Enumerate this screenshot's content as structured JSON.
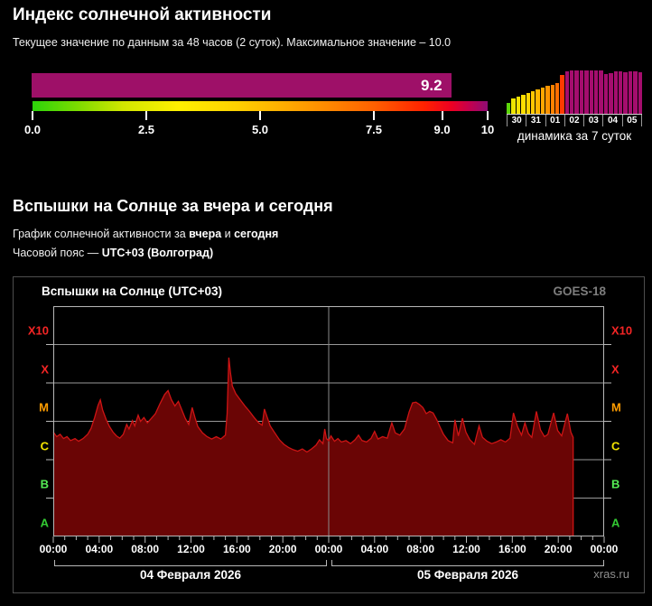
{
  "index_section": {
    "title": "Индекс солнечной активности",
    "subtitle": "Текущее значение по данным за 48 часов (2 суток). Максимальное значение – 10.0"
  },
  "flares_section": {
    "title": "Вспышки на Солнце за вчера и сегодня",
    "desc_prefix": "График солнечной активности за ",
    "desc_bold1": "вчера",
    "desc_mid": " и ",
    "desc_bold2": "сегодня",
    "tz_prefix": "Часовой пояс — ",
    "tz_bold": "UTC+03 (Волгоград)"
  },
  "chart_data": [
    {
      "name": "solar-activity-index-gauge",
      "type": "gauge",
      "value": 9.2,
      "value_label": "9.2",
      "min": 0,
      "max": 10,
      "bar_color": "#9e1068",
      "ticks": [
        {
          "label": "0.0",
          "pos": 0
        },
        {
          "label": "2.5",
          "pos": 25
        },
        {
          "label": "5.0",
          "pos": 50
        },
        {
          "label": "7.5",
          "pos": 75
        },
        {
          "label": "9.0",
          "pos": 90
        },
        {
          "label": "10",
          "pos": 100
        }
      ],
      "gradient_stops": [
        "#2cd40a 0%",
        "#7ddc00 10%",
        "#d2e600 20%",
        "#fff000 32%",
        "#ffd000 45%",
        "#ffaa00 56%",
        "#ff8800 65%",
        "#ff6000 75%",
        "#ff2200 86%",
        "#ee0022 92%",
        "#c4004e 96%",
        "#8e0c74 100%"
      ]
    },
    {
      "name": "activity-7day-dynamics",
      "type": "bar",
      "caption": "динамика за 7 суток",
      "day_labels": [
        "30",
        "31",
        "01",
        "02",
        "03",
        "04",
        "05"
      ],
      "values_pct": [
        26,
        36,
        40,
        44,
        48,
        52,
        56,
        60,
        64,
        67,
        71,
        90,
        97,
        99,
        99,
        100,
        99,
        100,
        99,
        99,
        92,
        94,
        97,
        98,
        96,
        97,
        98,
        96
      ],
      "colors": [
        "#5cd60a",
        "#ede400",
        "#f6e200",
        "#fede00",
        "#ffd600",
        "#ffc800",
        "#ffb800",
        "#ffa600",
        "#ff9400",
        "#ff8200",
        "#ff6e00",
        "#fe3b00",
        "#a50d6e",
        "#a50d6e",
        "#a50d6e",
        "#a50d6e",
        "#a50d6e",
        "#a50d6e",
        "#a50d6e",
        "#a50d6e",
        "#a50d6e",
        "#a50d6e",
        "#a50d6e",
        "#a50d6e",
        "#a50d6e",
        "#a50d6e",
        "#a50d6e",
        "#a50d6e"
      ]
    },
    {
      "name": "solar-flares-goes",
      "type": "area",
      "title": "Вспышки на Солнце (UTC+03)",
      "source_label": "GOES-18",
      "watermark": "xras.ru",
      "x_range_hours": [
        0,
        48
      ],
      "data_end_hour": 45.3,
      "x_tick_labels": [
        "00:00",
        "04:00",
        "08:00",
        "12:00",
        "16:00",
        "20:00",
        "00:00",
        "04:00",
        "08:00",
        "12:00",
        "16:00",
        "20:00",
        "00:00"
      ],
      "day_labels": [
        "04 Февраля 2026",
        "05 Февраля 2026"
      ],
      "y_class_labels": [
        {
          "label": "X10",
          "color": "#f42525"
        },
        {
          "label": "X",
          "color": "#f42525"
        },
        {
          "label": "M",
          "color": "#ff9d00"
        },
        {
          "label": "C",
          "color": "#f5e400"
        },
        {
          "label": "B",
          "color": "#55ee55"
        },
        {
          "label": "A",
          "color": "#33cc33"
        }
      ],
      "y_scale_note": "flux in class units: A=0-1, B=1-2, C=2-3, M=3-4, X=4-5, X10=5-6",
      "area_fill": "#6a0505",
      "line_color": "#cd1414",
      "grid_color": "#989898",
      "frame_color": "#b8b8b8",
      "points": [
        [
          0,
          2.72
        ],
        [
          0.3,
          2.6
        ],
        [
          0.6,
          2.66
        ],
        [
          0.9,
          2.55
        ],
        [
          1.2,
          2.6
        ],
        [
          1.5,
          2.5
        ],
        [
          1.9,
          2.55
        ],
        [
          2.2,
          2.48
        ],
        [
          2.6,
          2.55
        ],
        [
          3,
          2.66
        ],
        [
          3.3,
          2.82
        ],
        [
          3.6,
          3.1
        ],
        [
          3.9,
          3.42
        ],
        [
          4.1,
          3.56
        ],
        [
          4.3,
          3.3
        ],
        [
          4.6,
          3.05
        ],
        [
          4.9,
          2.86
        ],
        [
          5.2,
          2.72
        ],
        [
          5.5,
          2.62
        ],
        [
          5.8,
          2.56
        ],
        [
          6.1,
          2.66
        ],
        [
          6.4,
          2.92
        ],
        [
          6.6,
          2.8
        ],
        [
          6.9,
          3.02
        ],
        [
          7.1,
          2.88
        ],
        [
          7.4,
          3.16
        ],
        [
          7.6,
          3
        ],
        [
          7.9,
          3.1
        ],
        [
          8.2,
          2.96
        ],
        [
          8.5,
          3.06
        ],
        [
          8.9,
          3.2
        ],
        [
          9.3,
          3.46
        ],
        [
          9.7,
          3.7
        ],
        [
          10,
          3.8
        ],
        [
          10.3,
          3.56
        ],
        [
          10.6,
          3.4
        ],
        [
          10.9,
          3.52
        ],
        [
          11.2,
          3.3
        ],
        [
          11.5,
          3.08
        ],
        [
          11.8,
          2.92
        ],
        [
          12.1,
          3.36
        ],
        [
          12.35,
          3.1
        ],
        [
          12.6,
          2.86
        ],
        [
          13,
          2.7
        ],
        [
          13.4,
          2.6
        ],
        [
          13.8,
          2.54
        ],
        [
          14.2,
          2.6
        ],
        [
          14.6,
          2.54
        ],
        [
          15,
          2.64
        ],
        [
          15.15,
          3.2
        ],
        [
          15.3,
          4.66
        ],
        [
          15.45,
          4.25
        ],
        [
          15.6,
          3.92
        ],
        [
          15.9,
          3.72
        ],
        [
          16.3,
          3.56
        ],
        [
          16.7,
          3.4
        ],
        [
          17.1,
          3.26
        ],
        [
          17.5,
          3.1
        ],
        [
          17.9,
          2.96
        ],
        [
          18.2,
          2.9
        ],
        [
          18.4,
          3.32
        ],
        [
          18.65,
          3.1
        ],
        [
          18.9,
          2.88
        ],
        [
          19.3,
          2.7
        ],
        [
          19.7,
          2.52
        ],
        [
          20.1,
          2.4
        ],
        [
          20.5,
          2.32
        ],
        [
          20.9,
          2.26
        ],
        [
          21.3,
          2.22
        ],
        [
          21.7,
          2.28
        ],
        [
          22.1,
          2.2
        ],
        [
          22.5,
          2.28
        ],
        [
          22.9,
          2.38
        ],
        [
          23.2,
          2.52
        ],
        [
          23.5,
          2.42
        ],
        [
          23.65,
          2.8
        ],
        [
          23.8,
          2.55
        ],
        [
          24,
          2.5
        ],
        [
          24.2,
          2.62
        ],
        [
          24.5,
          2.48
        ],
        [
          24.8,
          2.55
        ],
        [
          25.1,
          2.46
        ],
        [
          25.5,
          2.5
        ],
        [
          25.9,
          2.42
        ],
        [
          26.3,
          2.52
        ],
        [
          26.6,
          2.64
        ],
        [
          26.9,
          2.5
        ],
        [
          27.3,
          2.46
        ],
        [
          27.7,
          2.56
        ],
        [
          28,
          2.74
        ],
        [
          28.3,
          2.54
        ],
        [
          28.7,
          2.6
        ],
        [
          29.1,
          2.56
        ],
        [
          29.5,
          2.96
        ],
        [
          29.8,
          2.7
        ],
        [
          30.2,
          2.64
        ],
        [
          30.6,
          2.8
        ],
        [
          31,
          3.24
        ],
        [
          31.3,
          3.48
        ],
        [
          31.6,
          3.5
        ],
        [
          31.9,
          3.44
        ],
        [
          32.2,
          3.36
        ],
        [
          32.5,
          3.2
        ],
        [
          32.8,
          3.26
        ],
        [
          33.1,
          3.22
        ],
        [
          33.4,
          3.05
        ],
        [
          33.7,
          2.85
        ],
        [
          34,
          2.66
        ],
        [
          34.4,
          2.5
        ],
        [
          34.8,
          2.44
        ],
        [
          35,
          3.04
        ],
        [
          35.3,
          2.62
        ],
        [
          35.65,
          3.08
        ],
        [
          35.95,
          2.72
        ],
        [
          36.3,
          2.52
        ],
        [
          36.7,
          2.4
        ],
        [
          37.1,
          2.88
        ],
        [
          37.4,
          2.58
        ],
        [
          37.8,
          2.48
        ],
        [
          38.2,
          2.42
        ],
        [
          38.6,
          2.46
        ],
        [
          39,
          2.52
        ],
        [
          39.4,
          2.46
        ],
        [
          39.8,
          2.56
        ],
        [
          40.1,
          3.22
        ],
        [
          40.45,
          2.86
        ],
        [
          40.8,
          2.64
        ],
        [
          41.1,
          2.96
        ],
        [
          41.4,
          2.68
        ],
        [
          41.7,
          2.58
        ],
        [
          42.1,
          3.26
        ],
        [
          42.45,
          2.78
        ],
        [
          42.8,
          2.6
        ],
        [
          43.1,
          2.66
        ],
        [
          43.6,
          3.22
        ],
        [
          43.95,
          2.76
        ],
        [
          44.3,
          2.62
        ],
        [
          44.8,
          3.2
        ],
        [
          45.1,
          2.72
        ],
        [
          45.3,
          2.58
        ]
      ]
    }
  ]
}
